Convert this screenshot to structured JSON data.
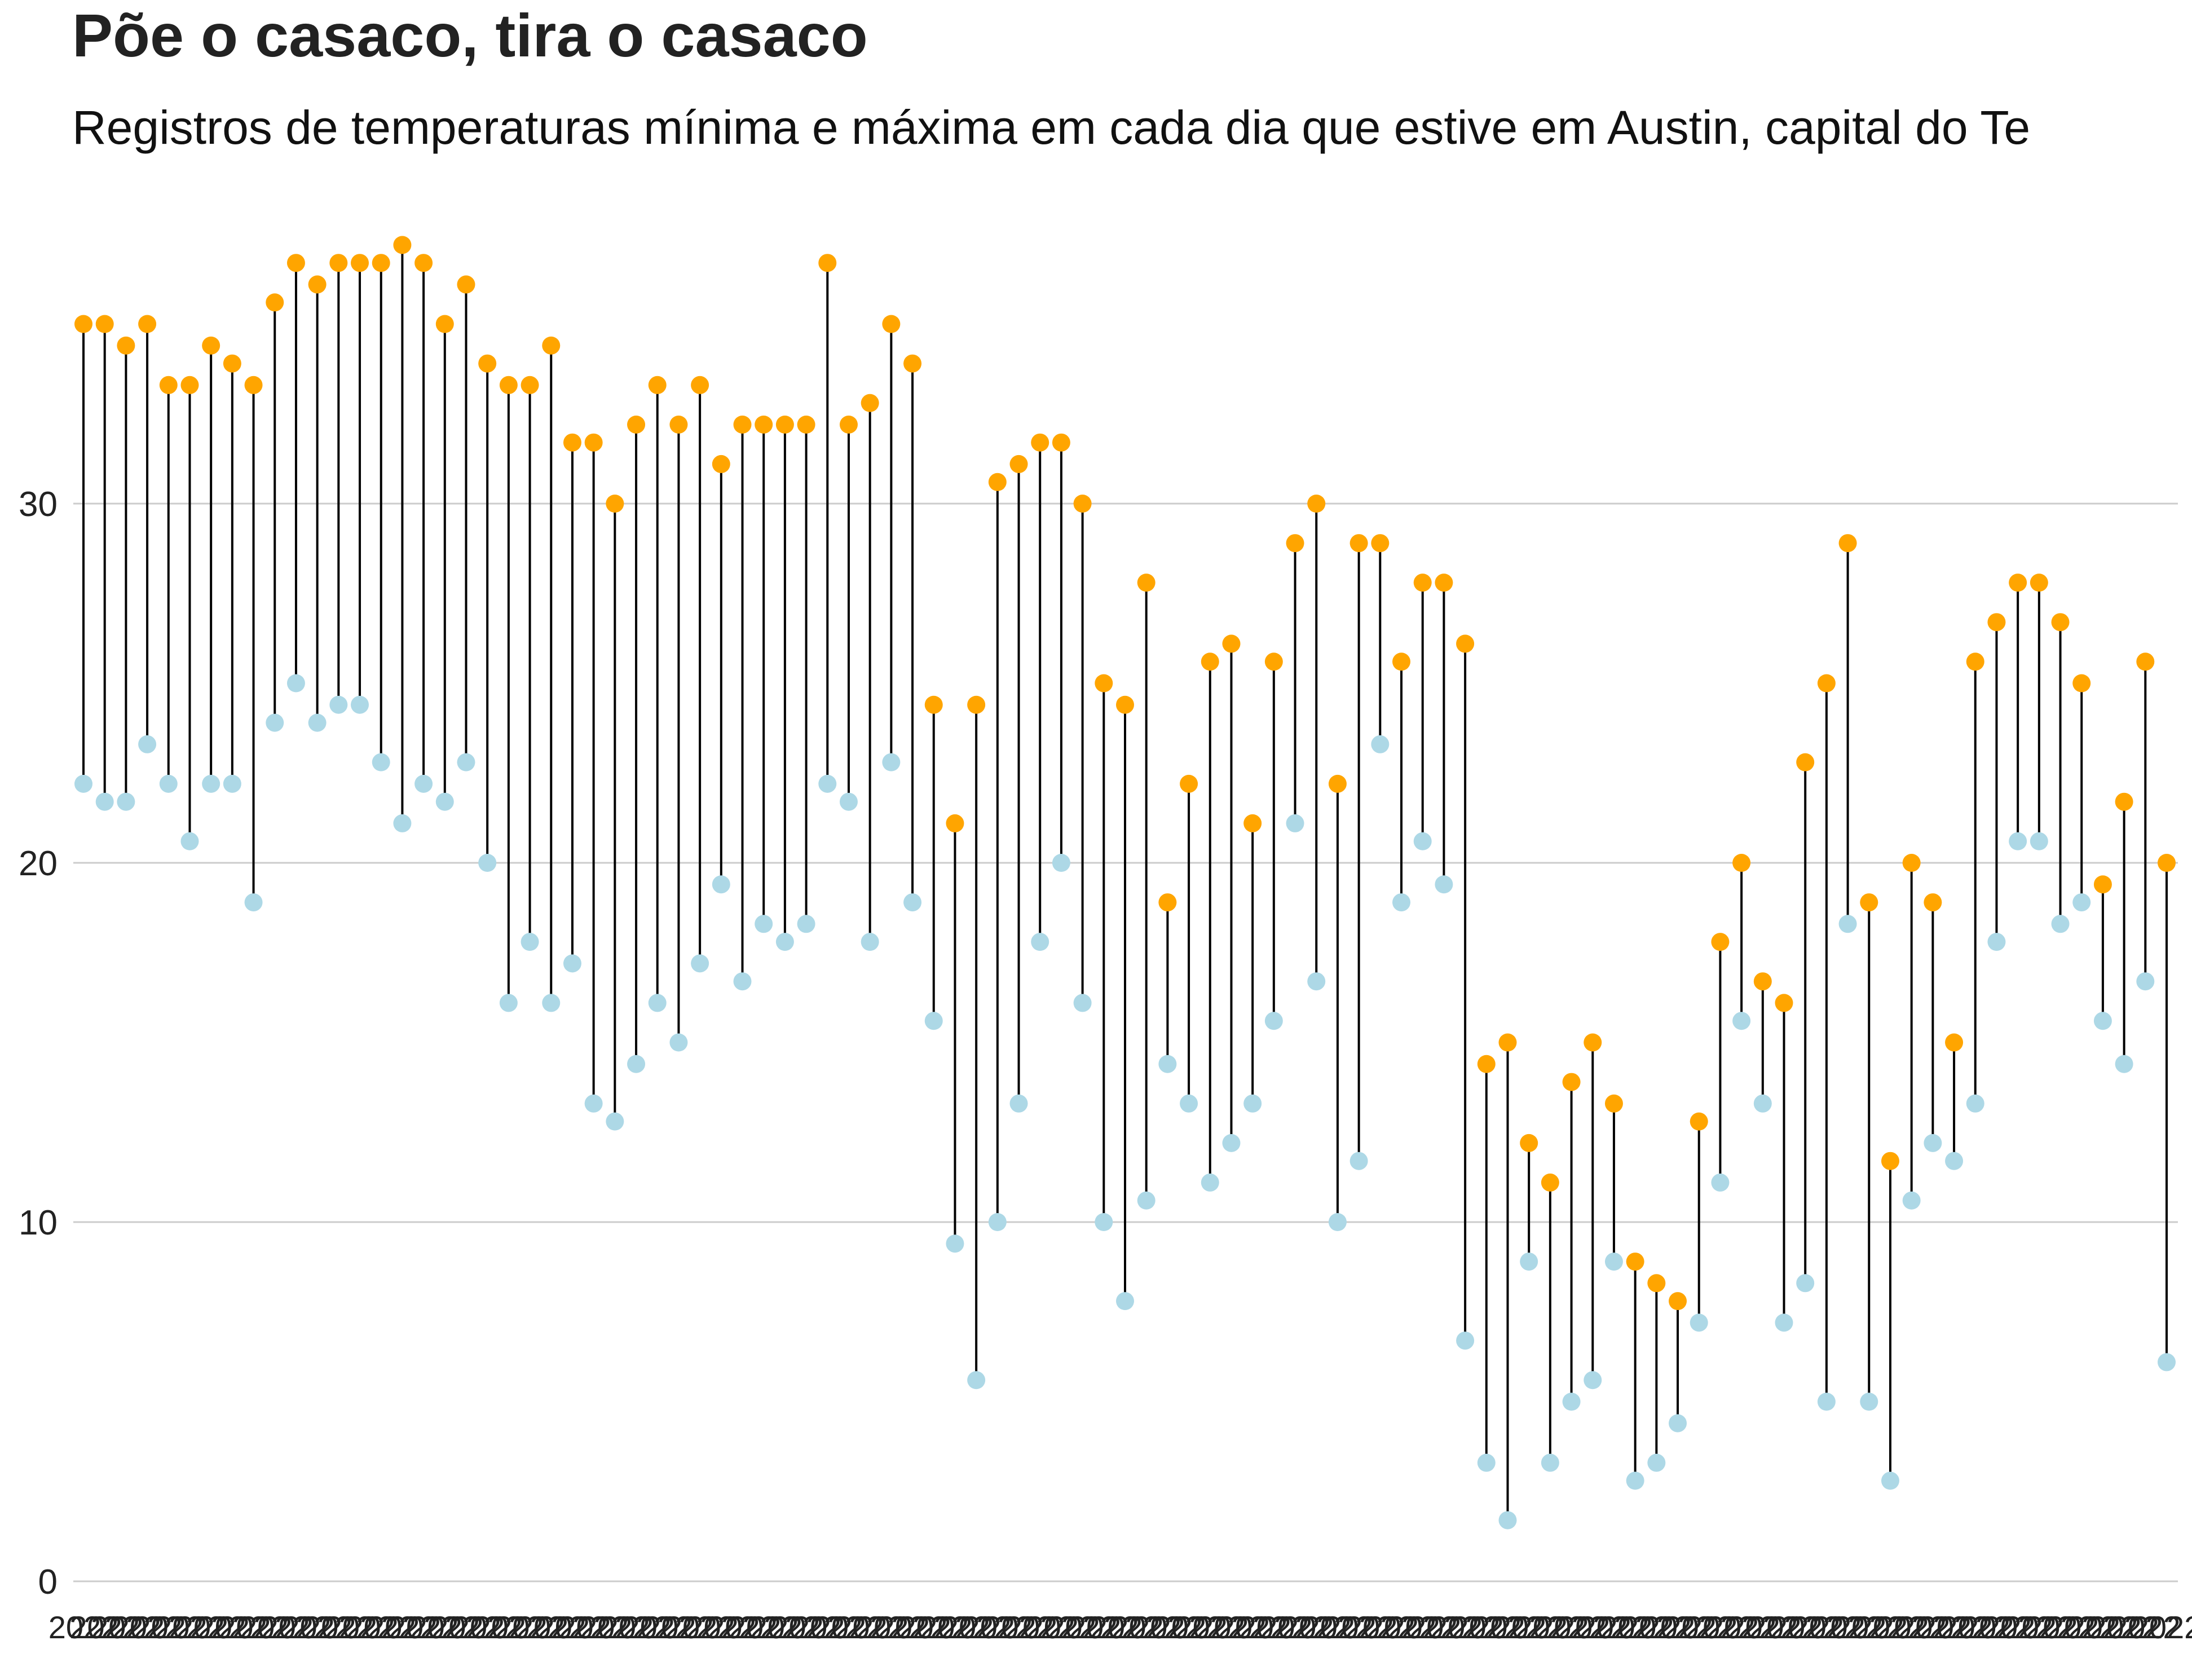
{
  "chart_data": {
    "type": "dumbbell",
    "title": "Põe o casaco, tira o casaco",
    "subtitle": "Registros de temperaturas mínima e máxima em cada dia que estive em Austin, capital do Te",
    "xlabel": "",
    "ylabel": "",
    "ylim": [
      0,
      38
    ],
    "yticks": [
      0,
      10,
      20,
      30
    ],
    "grid": true,
    "colors": {
      "min": "#add8e6",
      "max": "#ffa500",
      "segment": "#000000",
      "grid": "#cccccc"
    },
    "xtick_label": "2022",
    "series": [
      {
        "name": "min",
        "values": [
          22.2,
          21.7,
          21.7,
          23.3,
          22.2,
          20.6,
          22.2,
          22.2,
          18.9,
          23.9,
          25,
          23.9,
          24.4,
          24.4,
          22.8,
          21.1,
          22.2,
          21.7,
          22.8,
          20,
          16.1,
          17.8,
          16.1,
          17.2,
          13.3,
          12.8,
          14.4,
          16.1,
          15,
          17.2,
          19.4,
          16.7,
          18.3,
          17.8,
          18.3,
          22.2,
          21.7,
          17.8,
          22.8,
          18.9,
          15.6,
          9.4,
          5.6,
          10,
          13.3,
          17.8,
          20,
          16.1,
          10,
          7.8,
          10.6,
          14.4,
          13.3,
          11.1,
          12.2,
          13.3,
          15.6,
          21.1,
          16.7,
          10,
          11.7,
          23.3,
          18.9,
          20.6,
          19.4,
          6.7,
          3.3,
          1.7,
          8.9,
          3.3,
          5,
          5.6,
          8.9,
          2.8,
          3.3,
          4.4,
          7.2,
          11.1,
          15.6,
          13.3,
          7.2,
          8.3,
          5,
          18.3,
          5,
          2.8,
          10.6,
          12.2,
          11.7,
          13.3,
          17.8,
          20.6,
          20.6,
          18.3,
          18.9,
          15.6,
          14.4,
          16.7,
          6.1
        ]
      },
      {
        "name": "max",
        "values": [
          35,
          35,
          34.4,
          35,
          33.3,
          33.3,
          34.4,
          33.9,
          33.3,
          35.6,
          36.7,
          36.1,
          36.7,
          36.7,
          36.7,
          37.2,
          36.7,
          35,
          36.1,
          33.9,
          33.3,
          33.3,
          34.4,
          31.7,
          31.7,
          30,
          32.2,
          33.3,
          32.2,
          33.3,
          31.1,
          32.2,
          32.2,
          32.2,
          32.2,
          36.7,
          32.2,
          32.8,
          35,
          33.9,
          24.4,
          21.1,
          24.4,
          30.6,
          31.1,
          31.7,
          31.7,
          30,
          25,
          24.4,
          27.8,
          18.9,
          22.2,
          25.6,
          26.1,
          21.1,
          25.6,
          28.9,
          30,
          22.2,
          28.9,
          28.9,
          25.6,
          27.8,
          27.8,
          26.1,
          14.4,
          15,
          12.2,
          11.1,
          13.9,
          15,
          13.3,
          8.9,
          8.3,
          7.8,
          12.8,
          17.8,
          20,
          16.7,
          16.1,
          22.8,
          25,
          28.9,
          18.9,
          11.7,
          20,
          18.9,
          15,
          25.6,
          26.7,
          27.8,
          27.8,
          26.7,
          25,
          19.4,
          21.7,
          25.6,
          20
        ]
      }
    ]
  }
}
